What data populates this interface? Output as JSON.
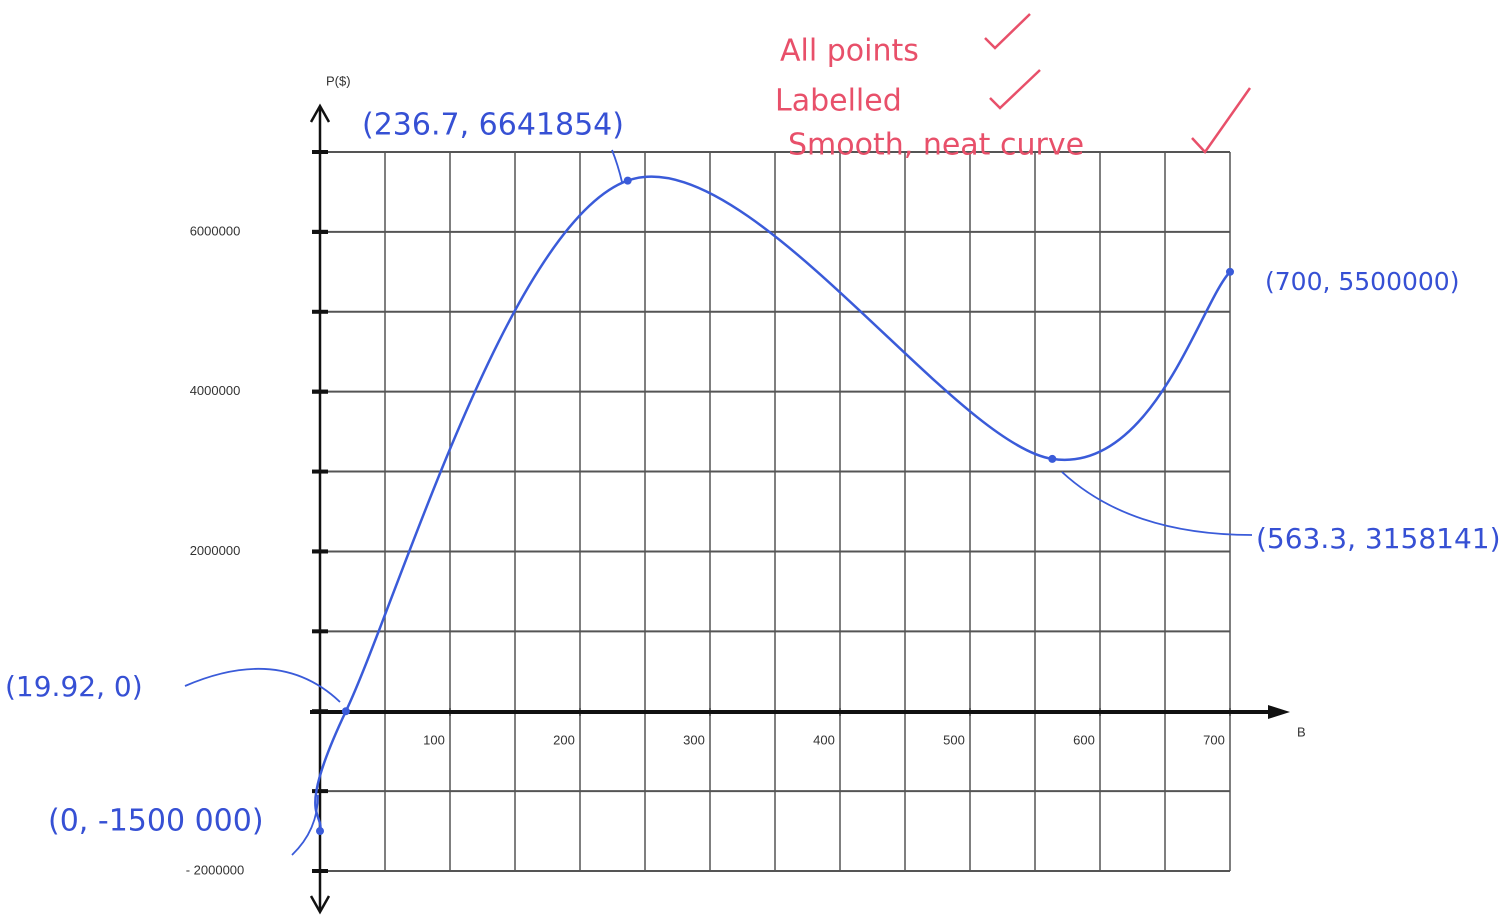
{
  "chart_data": {
    "type": "line",
    "x_label": "B",
    "y_label": "P($)",
    "x": [
      0,
      19.92,
      236.7,
      563.3,
      700
    ],
    "values": [
      -1500000,
      0,
      6641854,
      3158141,
      5500000
    ],
    "point_labels": [
      "(0, -1500 000)",
      "(19.92, 0)",
      "(236.7, 6641854)",
      "(563.3, 3158141)",
      "(700, 5500000)"
    ],
    "color": "#3a5bd9",
    "xlim": [
      0,
      700
    ],
    "ylim": [
      -2000000,
      7000000
    ],
    "xticks": [
      100,
      200,
      300,
      400,
      500,
      600,
      700
    ],
    "yticks": [
      {
        "value": -2000000,
        "label": "- 2000000"
      },
      2000000,
      4000000,
      6000000
    ],
    "grid": true,
    "notes": [
      "All points",
      "Labelled",
      "Smooth, neat curve"
    ]
  }
}
